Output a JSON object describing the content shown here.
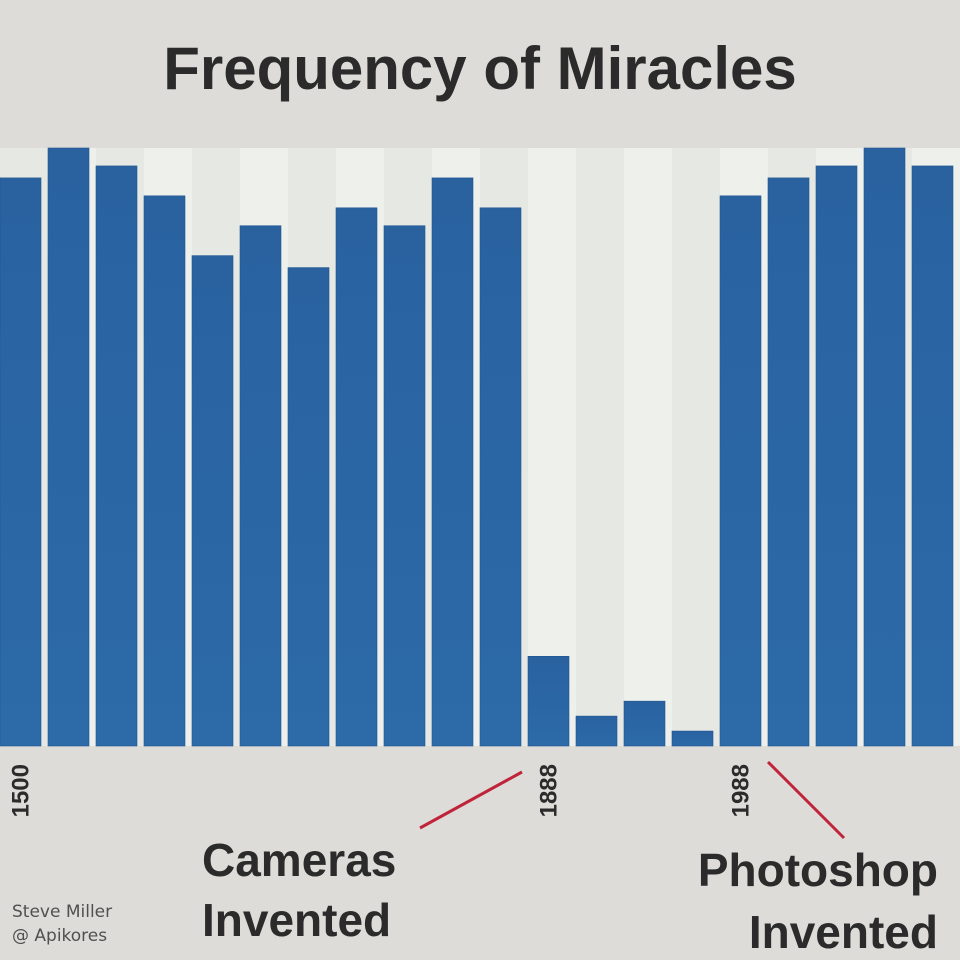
{
  "chart_data": {
    "type": "bar",
    "title": "Frequency of Miracles",
    "categories": [
      "1500",
      "",
      "",
      "",
      "",
      "",
      "",
      "",
      "",
      "",
      "",
      "1888",
      "",
      "",
      "",
      "1988",
      "",
      "",
      "",
      ""
    ],
    "values": [
      95,
      100,
      97,
      92,
      82,
      87,
      80,
      90,
      87,
      95,
      90,
      15,
      5,
      7.5,
      2.5,
      92,
      95,
      97,
      100,
      97
    ],
    "ylim": [
      0,
      100
    ],
    "xlabel": "",
    "ylabel": "",
    "grid": false,
    "tick_labels": [
      "1500",
      "1888",
      "1988"
    ],
    "annotations": [
      "Cameras\nInvented",
      "Photoshop\nInvented"
    ],
    "colors": {
      "bar": "#2a62a0",
      "bar_edge": "#1f5590",
      "plot_bg": "#e6e8e4",
      "stripe": "#eef0ec",
      "annotation_line": "#c0243a",
      "text": "#2b2b2b"
    }
  },
  "credit": {
    "name": "Steve Miller",
    "handle": "@ Apikores"
  }
}
